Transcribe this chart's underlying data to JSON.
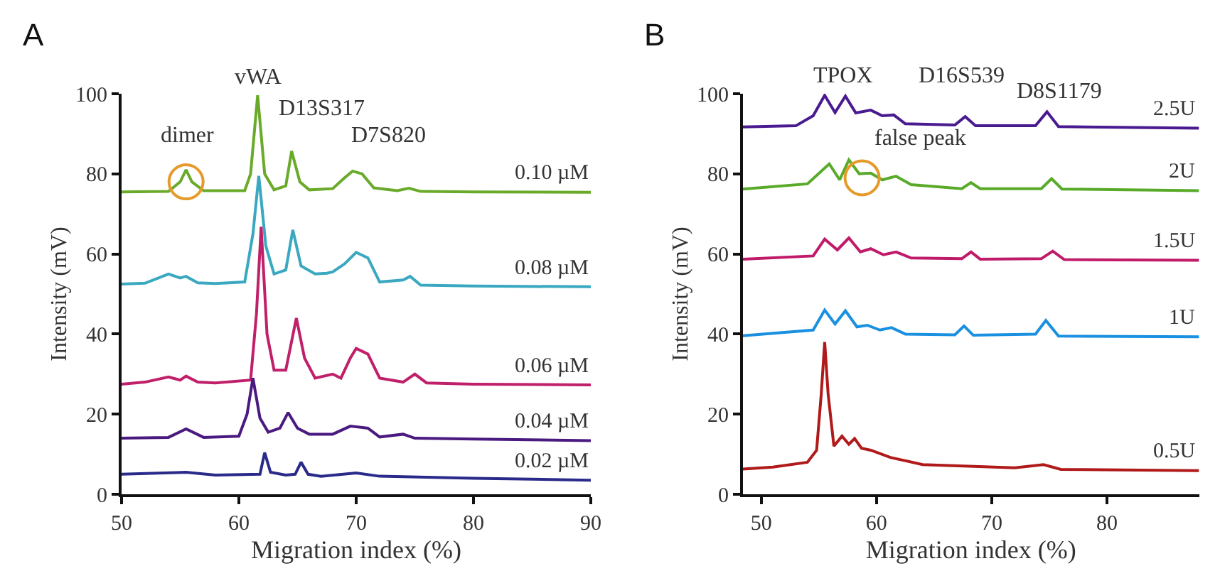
{
  "chart_data": [
    {
      "type": "line",
      "title": "A",
      "xlabel": "Migration index (%)",
      "ylabel": "Intensity (mV)",
      "xlim": [
        50,
        90
      ],
      "ylim": [
        0,
        100
      ],
      "xticks": [
        50,
        60,
        70,
        80,
        90
      ],
      "yticks": [
        0,
        20,
        40,
        60,
        80,
        100
      ],
      "marker": "none",
      "line_style": "solid",
      "series": [
        {
          "name": "0.10 µM",
          "color": "#6aaa2a",
          "x": [
            50,
            54,
            55,
            55.5,
            56,
            57,
            60.5,
            61,
            61.6,
            62.2,
            63,
            64,
            64.5,
            65.2,
            66,
            68,
            69,
            69.7,
            70.5,
            71.5,
            73.5,
            74.5,
            75.5,
            80,
            90
          ],
          "values": [
            75.5,
            75.6,
            78,
            81,
            78,
            75.8,
            75.8,
            80,
            99.6,
            80,
            76,
            77,
            85.7,
            78,
            76,
            76.3,
            79,
            80.7,
            80,
            76.5,
            75.8,
            76.4,
            75.6,
            75.5,
            75.4
          ]
        },
        {
          "name": "0.08 µM",
          "color": "#3aa8c0",
          "x": [
            50,
            52,
            54,
            55,
            55.5,
            56.5,
            58,
            60.5,
            61.2,
            61.7,
            62.3,
            63,
            64,
            64.6,
            65.3,
            66.5,
            67.5,
            68,
            69,
            70,
            71,
            72,
            74,
            74.6,
            75.5,
            80,
            90
          ],
          "values": [
            52.5,
            52.7,
            55,
            54,
            54.4,
            52.8,
            52.6,
            53,
            65,
            79.5,
            62,
            55,
            56,
            66,
            57,
            55,
            55.2,
            55.5,
            57.5,
            60.4,
            59,
            53,
            53.5,
            54.4,
            52.2,
            52,
            51.8
          ]
        },
        {
          "name": "0.06 µM",
          "color": "#c0206a",
          "x": [
            50,
            52,
            54,
            55,
            55.5,
            56.5,
            58,
            61,
            61.5,
            61.9,
            62.4,
            63,
            64,
            64.9,
            65.6,
            66.5,
            68,
            68.7,
            69.5,
            70,
            71,
            72,
            74,
            75,
            76,
            80,
            90
          ],
          "values": [
            27.5,
            28,
            29.3,
            28.5,
            29.5,
            28,
            27.8,
            28.5,
            45,
            66.8,
            40,
            31,
            31,
            44,
            34,
            29,
            30,
            29,
            34,
            36.4,
            35,
            29,
            28,
            30,
            27.8,
            27.5,
            27.3
          ]
        },
        {
          "name": "0.04 µM",
          "color": "#4a1a80",
          "x": [
            50,
            54,
            55.5,
            57,
            60,
            60.7,
            61.2,
            61.8,
            62.5,
            63.5,
            64.2,
            65,
            66,
            68,
            69.5,
            71,
            72,
            74,
            75,
            80,
            90
          ],
          "values": [
            14,
            14.2,
            16.3,
            14.2,
            14.5,
            20,
            29,
            19,
            15.5,
            16.5,
            20.4,
            16.5,
            15,
            15,
            17,
            16.5,
            14.3,
            15,
            14,
            13.8,
            13.4
          ]
        },
        {
          "name": "0.02 µM",
          "color": "#2a2a8a",
          "x": [
            50,
            55.5,
            58,
            61.8,
            62.2,
            62.7,
            64,
            64.8,
            65.3,
            65.9,
            67,
            70,
            72,
            80,
            90
          ],
          "values": [
            5,
            5.5,
            4.8,
            5,
            10.4,
            5.5,
            4.8,
            5,
            8,
            5,
            4.5,
            5.3,
            4.5,
            4,
            3.5
          ]
        },
        {
          "type": "scatter",
          "marker": "circle",
          "color": "#e69a2a",
          "x": [
            55.5
          ],
          "values": [
            78
          ]
        }
      ],
      "annotations": [
        "dimer",
        "vWA",
        "D13S317",
        "D7S820"
      ]
    },
    {
      "type": "line",
      "title": "B",
      "xlabel": "Migration index (%)",
      "ylabel": "Intensity (mV)",
      "xlim": [
        48.4,
        88
      ],
      "ylim": [
        0,
        100
      ],
      "xticks": [
        50,
        60,
        70,
        80
      ],
      "yticks": [
        0,
        20,
        40,
        60,
        80,
        100
      ],
      "marker": "none",
      "line_style": "solid",
      "series": [
        {
          "name": "2.5U",
          "color": "#4a1a90",
          "x": [
            48.4,
            53,
            54.5,
            55.5,
            56.4,
            57.3,
            58.2,
            59.5,
            60.5,
            61.5,
            62.5,
            66.8,
            67.7,
            68.6,
            73.8,
            74.8,
            75.8,
            88
          ],
          "values": [
            91.7,
            92,
            94.5,
            99.6,
            95.3,
            99.4,
            95.2,
            95.9,
            94.5,
            94.7,
            92.5,
            92.2,
            94.3,
            92,
            92,
            95.5,
            91.8,
            91.4
          ]
        },
        {
          "name": "2U",
          "color": "#5aaa2a",
          "x": [
            48.4,
            54,
            55.9,
            56.8,
            57.6,
            58.5,
            59.5,
            60.5,
            61.7,
            63,
            67.4,
            68.2,
            69,
            74.3,
            75.2,
            76.1,
            88
          ],
          "values": [
            76.2,
            77.5,
            82.5,
            78.5,
            83.5,
            80,
            80.2,
            78.5,
            79.4,
            77.3,
            76.3,
            77.8,
            76.3,
            76.3,
            78.8,
            76.2,
            75.8
          ]
        },
        {
          "name": "1.5U",
          "color": "#c01a6a",
          "x": [
            48.4,
            54.5,
            55.5,
            56.6,
            57.6,
            58.6,
            59.5,
            60.6,
            61.7,
            63,
            67.4,
            68.2,
            69,
            74.3,
            75.3,
            76.3,
            88
          ],
          "values": [
            58.7,
            59.5,
            63.7,
            61,
            64,
            60.5,
            61.3,
            59.8,
            60.5,
            59,
            58.8,
            60.5,
            58.7,
            58.8,
            60.7,
            58.6,
            58.4
          ]
        },
        {
          "name": "1U",
          "color": "#1a90e0",
          "x": [
            48.4,
            54.5,
            55.5,
            56.4,
            57.3,
            58.3,
            59.2,
            60.3,
            61.3,
            62.5,
            66.8,
            67.6,
            68.4,
            73.8,
            74.7,
            75.8,
            88
          ],
          "values": [
            39.6,
            41,
            46,
            42.5,
            45.8,
            41.8,
            42.2,
            41,
            41.6,
            40,
            39.8,
            42,
            39.7,
            40,
            43.4,
            39.5,
            39.3
          ]
        },
        {
          "name": "0.5U",
          "color": "#b01a1a",
          "x": [
            48.4,
            51,
            54,
            54.8,
            55.2,
            55.5,
            55.8,
            56.3,
            57,
            57.6,
            58.1,
            58.7,
            59.5,
            61.2,
            64,
            68,
            72,
            74.5,
            76,
            88
          ],
          "values": [
            6.3,
            6.8,
            8,
            11,
            25,
            38,
            25,
            12,
            14.5,
            12.5,
            13.9,
            11.5,
            11,
            9.2,
            7.4,
            7,
            6.6,
            7.4,
            6.2,
            5.9
          ]
        },
        {
          "type": "scatter",
          "marker": "circle",
          "color": "#e69a2a",
          "x": [
            58.75
          ],
          "values": [
            79
          ]
        }
      ],
      "annotations": [
        "TPOX",
        "D16S539",
        "D8S1179",
        "false peak"
      ]
    }
  ]
}
